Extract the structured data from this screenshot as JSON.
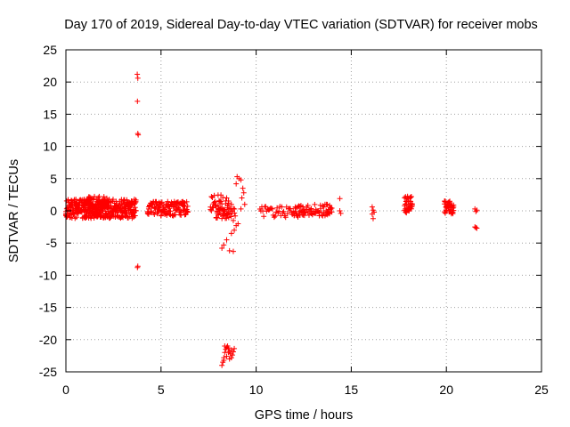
{
  "chart_data": {
    "type": "scatter",
    "title": "Day 170 of 2019, Sidereal Day-to-day VTEC variation (SDTVAR) for receiver mobs",
    "xlabel": "GPS time / hours",
    "ylabel": "SDTVAR / TECUs",
    "xlim": [
      0,
      25
    ],
    "ylim": [
      -25,
      25
    ],
    "xticks": [
      0,
      5,
      10,
      15,
      20,
      25
    ],
    "yticks": [
      -25,
      -20,
      -15,
      -10,
      -5,
      0,
      5,
      10,
      15,
      20,
      25
    ],
    "grid": true,
    "marker": "plus",
    "color": "#ff0000",
    "bands": [
      {
        "x0": 0.0,
        "x1": 3.7,
        "y0": -1.2,
        "y1": 1.8,
        "step": 0.04,
        "density": 4
      },
      {
        "x0": 1.0,
        "x1": 2.2,
        "y0": -1.0,
        "y1": 2.3,
        "step": 0.05,
        "density": 3
      },
      {
        "x0": 4.3,
        "x1": 6.4,
        "y0": -0.8,
        "y1": 1.5,
        "step": 0.05,
        "density": 3
      },
      {
        "x0": 7.6,
        "x1": 8.6,
        "y0": -0.5,
        "y1": 2.6,
        "step": 0.05,
        "density": 2
      },
      {
        "x0": 7.9,
        "x1": 8.9,
        "y0": -1.2,
        "y1": 0.5,
        "step": 0.06,
        "density": 2
      },
      {
        "x0": 10.2,
        "x1": 12.6,
        "y0": -1.0,
        "y1": 0.8,
        "step": 0.05,
        "density": 1
      },
      {
        "x0": 12.0,
        "x1": 14.0,
        "y0": -0.8,
        "y1": 1.0,
        "step": 0.06,
        "density": 2
      },
      {
        "x0": 17.8,
        "x1": 18.2,
        "y0": -0.5,
        "y1": 2.3,
        "step": 0.04,
        "density": 3
      },
      {
        "x0": 19.9,
        "x1": 20.4,
        "y0": -0.5,
        "y1": 1.5,
        "step": 0.04,
        "density": 3
      }
    ],
    "points": [
      [
        3.75,
        21.2
      ],
      [
        3.78,
        20.6
      ],
      [
        3.76,
        17.0
      ],
      [
        3.78,
        12.0
      ],
      [
        3.8,
        11.8
      ],
      [
        3.76,
        -8.8
      ],
      [
        3.78,
        -8.6
      ],
      [
        8.2,
        -5.8
      ],
      [
        8.3,
        -5.3
      ],
      [
        8.45,
        -4.5
      ],
      [
        8.6,
        -6.2
      ],
      [
        8.8,
        -6.3
      ],
      [
        8.7,
        -3.5
      ],
      [
        8.85,
        -3.0
      ],
      [
        8.95,
        -2.3
      ],
      [
        9.05,
        -2.0
      ],
      [
        8.8,
        -1.5
      ],
      [
        8.9,
        -0.8
      ],
      [
        9.0,
        5.3
      ],
      [
        9.1,
        5.0
      ],
      [
        9.2,
        4.8
      ],
      [
        8.95,
        4.2
      ],
      [
        9.3,
        3.5
      ],
      [
        9.35,
        2.8
      ],
      [
        9.25,
        2.0
      ],
      [
        9.4,
        1.0
      ],
      [
        9.2,
        0.3
      ],
      [
        8.5,
        0.8
      ],
      [
        8.55,
        1.2
      ],
      [
        8.7,
        1.0
      ],
      [
        8.2,
        -24.0
      ],
      [
        8.25,
        -23.5
      ],
      [
        8.3,
        -22.8
      ],
      [
        8.35,
        -22.0
      ],
      [
        8.4,
        -21.5
      ],
      [
        8.45,
        -21.2
      ],
      [
        8.5,
        -21.0
      ],
      [
        8.55,
        -21.3
      ],
      [
        8.6,
        -21.8
      ],
      [
        8.65,
        -22.2
      ],
      [
        8.7,
        -21.6
      ],
      [
        8.75,
        -22.4
      ],
      [
        8.8,
        -21.9
      ],
      [
        8.3,
        -23.2
      ],
      [
        8.45,
        -22.6
      ],
      [
        8.6,
        -23.0
      ],
      [
        8.35,
        -21.0
      ],
      [
        8.55,
        -22.0
      ],
      [
        8.7,
        -22.8
      ],
      [
        8.85,
        -21.4
      ],
      [
        13.7,
        1.0
      ],
      [
        13.8,
        0.2
      ],
      [
        13.75,
        -0.6
      ],
      [
        13.9,
        0.5
      ],
      [
        13.85,
        -0.3
      ],
      [
        14.4,
        1.9
      ],
      [
        14.45,
        -0.4
      ],
      [
        14.4,
        0.0
      ],
      [
        16.1,
        0.6
      ],
      [
        16.15,
        -1.2
      ],
      [
        16.1,
        -0.5
      ],
      [
        16.2,
        -0.2
      ],
      [
        16.15,
        0.1
      ],
      [
        17.85,
        2.2
      ],
      [
        18.0,
        1.9
      ],
      [
        18.1,
        0.5
      ],
      [
        17.9,
        -0.3
      ],
      [
        21.5,
        0.3
      ],
      [
        21.6,
        0.1
      ],
      [
        21.55,
        -0.1
      ],
      [
        21.5,
        -2.5
      ],
      [
        21.6,
        -2.7
      ],
      [
        21.55,
        -2.6
      ]
    ]
  }
}
